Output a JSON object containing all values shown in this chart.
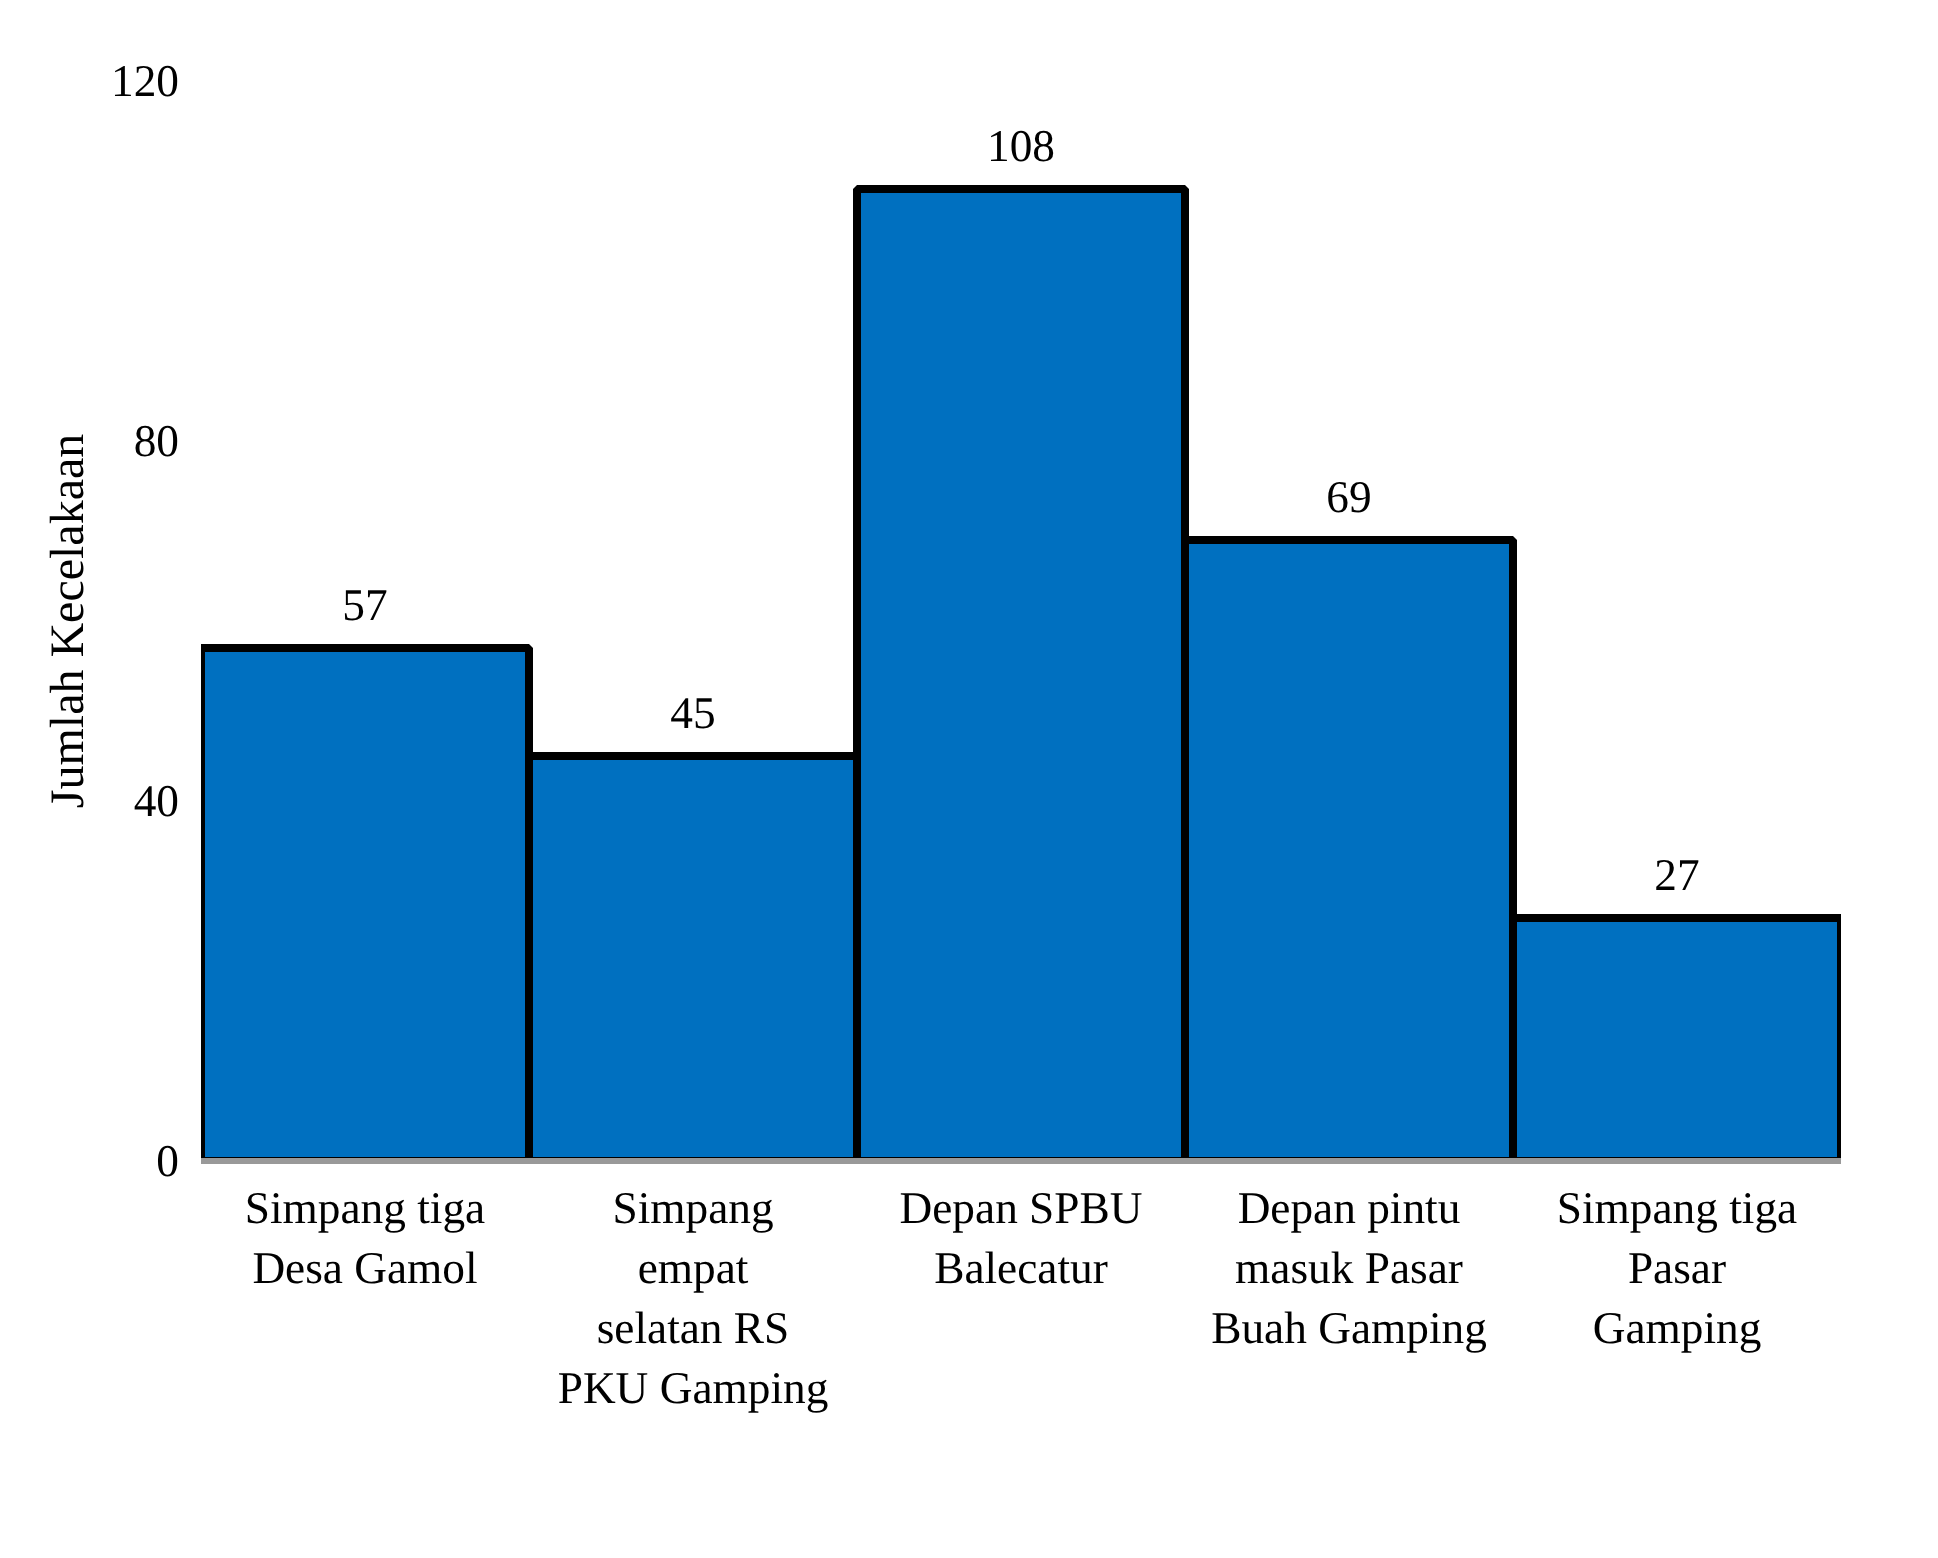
{
  "chart_data": {
    "type": "bar",
    "ylabel": "Jumlah Kecelakaan",
    "categories": [
      "Simpang tiga Desa Gamol",
      "Simpang empat selatan RS PKU Gamping",
      "Depan SPBU Balecatur",
      "Depan pintu masuk Pasar Buah Gamping",
      "Simpang tiga Pasar Gamping"
    ],
    "values": [
      57,
      45,
      108,
      69,
      27
    ],
    "color": "#0070c0",
    "ylim": [
      0,
      120
    ],
    "yticks": [
      0,
      40,
      80,
      120
    ],
    "grid": false,
    "data_labels": true
  }
}
